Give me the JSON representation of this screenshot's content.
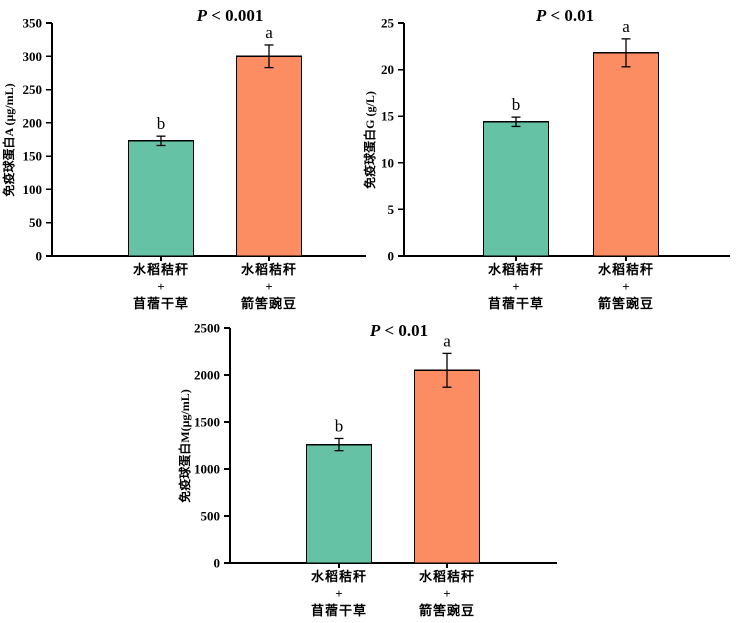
{
  "figure": {
    "background": "#ffffff",
    "description_names": [
      "chart-iga",
      "chart-igg",
      "chart-igm"
    ]
  },
  "palette": {
    "bar_fill": [
      "#66C2A5",
      "#FC8D62"
    ],
    "bar_edge": "#000000",
    "axis_color": "#000000",
    "text_color": "#000000",
    "plus_color": "#2B3A9B"
  },
  "chart_data": [
    {
      "type": "bar",
      "title": "P < 0.001",
      "ylabel": "免疫球蛋白A (μg/mL)",
      "xlabel": "",
      "ylim": [
        0,
        350
      ],
      "yticks": [
        0,
        50,
        100,
        150,
        200,
        250,
        300,
        350
      ],
      "categories": [
        "水稻秸秆+苜蓿干草",
        "水稻秸秆+箭筈豌豆"
      ],
      "category_lines": [
        [
          "水稻秸秆",
          "+",
          "苜蓿干草"
        ],
        [
          "水稻秸秆",
          "+",
          "箭筈豌豆"
        ]
      ],
      "values": [
        173,
        300
      ],
      "errors": [
        7,
        17
      ],
      "sig_letters": [
        "b",
        "a"
      ],
      "grid": false,
      "legend": "none"
    },
    {
      "type": "bar",
      "title": "P < 0.01",
      "ylabel": "免疫球蛋白G (g/L)",
      "xlabel": "",
      "ylim": [
        0,
        25
      ],
      "yticks": [
        0,
        5,
        10,
        15,
        20,
        25
      ],
      "categories": [
        "水稻秸秆+苜蓿干草",
        "水稻秸秆+箭筈豌豆"
      ],
      "category_lines": [
        [
          "水稻秸秆",
          "+",
          "苜蓿干草"
        ],
        [
          "水稻秸秆",
          "+",
          "箭筈豌豆"
        ]
      ],
      "values": [
        14.4,
        21.8
      ],
      "errors": [
        0.5,
        1.5
      ],
      "sig_letters": [
        "b",
        "a"
      ],
      "grid": false,
      "legend": "none"
    },
    {
      "type": "bar",
      "title": "P < 0.01",
      "ylabel": "免疫球蛋白M(μg/mL)",
      "xlabel": "",
      "ylim": [
        0,
        2500
      ],
      "yticks": [
        0,
        500,
        1000,
        1500,
        2000,
        2500
      ],
      "categories": [
        "水稻秸秆+苜蓿干草",
        "水稻秸秆+箭筈豌豆"
      ],
      "category_lines": [
        [
          "水稻秸秆",
          "+",
          "苜蓿干草"
        ],
        [
          "水稻秸秆",
          "+",
          "箭筈豌豆"
        ]
      ],
      "values": [
        1260,
        2050
      ],
      "errors": [
        65,
        180
      ],
      "sig_letters": [
        "b",
        "a"
      ],
      "grid": false,
      "legend": "none"
    }
  ]
}
